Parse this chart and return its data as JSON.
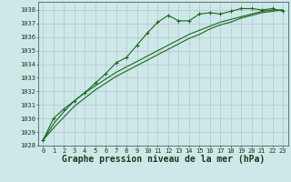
{
  "bg_color": "#cce8e8",
  "grid_color": "#b8b8c8",
  "line_color": "#1a6620",
  "marker_color": "#1a6620",
  "xlabel": "Graphe pression niveau de la mer (hPa)",
  "xlabel_fontsize": 7.0,
  "xlim": [
    -0.5,
    23.5
  ],
  "ylim": [
    1028,
    1038.6
  ],
  "yticks": [
    1028,
    1029,
    1030,
    1031,
    1032,
    1033,
    1034,
    1035,
    1036,
    1037,
    1038
  ],
  "xticks": [
    0,
    1,
    2,
    3,
    4,
    5,
    6,
    7,
    8,
    9,
    10,
    11,
    12,
    13,
    14,
    15,
    16,
    17,
    18,
    19,
    20,
    21,
    22,
    23
  ],
  "series1_x": [
    0,
    1,
    2,
    3,
    4,
    5,
    6,
    7,
    8,
    9,
    10,
    11,
    12,
    13,
    14,
    15,
    16,
    17,
    18,
    19,
    20,
    21,
    22,
    23
  ],
  "series1_y": [
    1028.4,
    1030.0,
    1030.7,
    1031.3,
    1031.9,
    1032.6,
    1033.3,
    1034.1,
    1034.5,
    1035.4,
    1036.3,
    1037.1,
    1037.6,
    1037.2,
    1037.2,
    1037.7,
    1037.8,
    1037.7,
    1037.9,
    1038.1,
    1038.1,
    1038.0,
    1038.1,
    1037.9
  ],
  "series2_x": [
    0,
    1,
    2,
    3,
    4,
    5,
    6,
    7,
    8,
    9,
    10,
    11,
    12,
    13,
    14,
    15,
    16,
    17,
    18,
    19,
    20,
    21,
    22,
    23
  ],
  "series2_y": [
    1028.4,
    1029.6,
    1030.5,
    1031.3,
    1031.9,
    1032.4,
    1032.9,
    1033.4,
    1033.8,
    1034.2,
    1034.6,
    1035.0,
    1035.4,
    1035.8,
    1036.2,
    1036.5,
    1036.8,
    1037.1,
    1037.3,
    1037.5,
    1037.7,
    1037.9,
    1038.0,
    1038.0
  ],
  "series3_x": [
    0,
    1,
    2,
    3,
    4,
    5,
    6,
    7,
    8,
    9,
    10,
    11,
    12,
    13,
    14,
    15,
    16,
    17,
    18,
    19,
    20,
    21,
    22,
    23
  ],
  "series3_y": [
    1028.4,
    1029.3,
    1030.1,
    1030.9,
    1031.5,
    1032.1,
    1032.6,
    1033.1,
    1033.5,
    1033.9,
    1034.3,
    1034.7,
    1035.1,
    1035.5,
    1035.9,
    1036.2,
    1036.6,
    1036.9,
    1037.1,
    1037.4,
    1037.6,
    1037.8,
    1037.9,
    1038.0
  ]
}
